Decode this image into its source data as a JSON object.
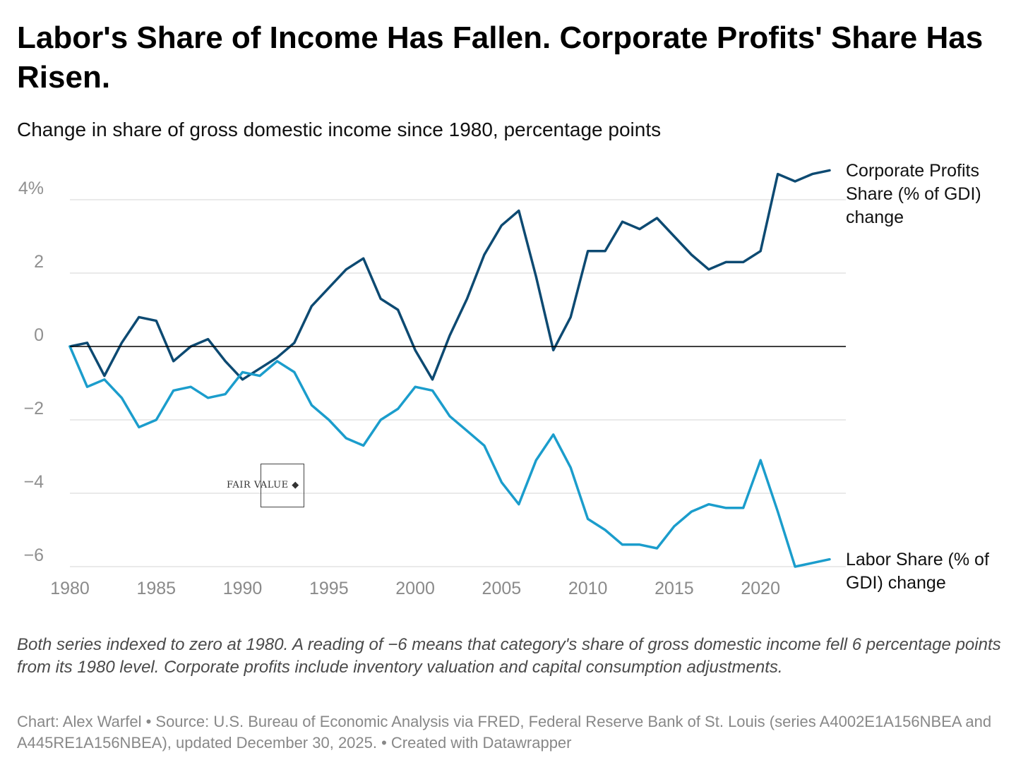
{
  "chart_data": {
    "type": "line",
    "title": "Labor's Share of Income Has Fallen. Corporate Profits' Share Has Risen.",
    "subtitle": "Change in share of gross domestic income since 1980, percentage points",
    "x": [
      1980,
      1981,
      1982,
      1983,
      1984,
      1985,
      1986,
      1987,
      1988,
      1989,
      1990,
      1991,
      1992,
      1993,
      1994,
      1995,
      1996,
      1997,
      1998,
      1999,
      2000,
      2001,
      2002,
      2003,
      2004,
      2005,
      2006,
      2007,
      2008,
      2009,
      2010,
      2011,
      2012,
      2013,
      2014,
      2015,
      2016,
      2017,
      2018,
      2019,
      2020,
      2021,
      2022,
      2023,
      2024
    ],
    "series": [
      {
        "name": "Corporate Profits Share (% of GDI) change",
        "color": "#0d4a72",
        "values": [
          0,
          0.1,
          -0.8,
          0.1,
          0.8,
          0.7,
          -0.4,
          0,
          0.2,
          -0.4,
          -0.9,
          -0.6,
          -0.3,
          0.1,
          1.1,
          1.6,
          2.1,
          2.4,
          1.3,
          1.0,
          -0.1,
          -0.9,
          0.3,
          1.3,
          2.5,
          3.3,
          3.7,
          1.9,
          -0.1,
          0.8,
          2.6,
          2.6,
          3.4,
          3.2,
          3.5,
          3.0,
          2.5,
          2.1,
          2.3,
          2.3,
          2.6,
          4.7,
          4.5,
          4.7,
          4.8
        ]
      },
      {
        "name": "Labor Share (% of GDI) change",
        "color": "#1b9dcc",
        "values": [
          0,
          -1.1,
          -0.9,
          -1.4,
          -2.2,
          -2.0,
          -1.2,
          -1.1,
          -1.4,
          -1.3,
          -0.7,
          -0.8,
          -0.4,
          -0.7,
          -1.6,
          -2.0,
          -2.5,
          -2.7,
          -2.0,
          -1.7,
          -1.1,
          -1.2,
          -1.9,
          -2.3,
          -2.7,
          -3.7,
          -4.3,
          -3.1,
          -2.4,
          -3.3,
          -4.7,
          -5.0,
          -5.4,
          -5.4,
          -5.5,
          -4.9,
          -4.5,
          -4.3,
          -4.4,
          -4.4,
          -3.1,
          -4.5,
          -6.0,
          -5.9,
          -5.8
        ]
      }
    ],
    "ylim": [
      -6,
      4.6
    ],
    "yticks": [
      4,
      2,
      0,
      -2,
      -4,
      -6
    ],
    "ytick_labels": [
      "4%",
      "2",
      "0",
      "−2",
      "−4",
      "−6"
    ],
    "xticks": [
      1980,
      1985,
      1990,
      1995,
      2000,
      2005,
      2010,
      2015,
      2020
    ],
    "xtick_labels": [
      "1980",
      "1985",
      "1990",
      "1995",
      "2000",
      "2005",
      "2010",
      "2015",
      "2020"
    ],
    "xlabel": "",
    "ylabel": "",
    "grid": true,
    "legend": "direct labels at line ends (right)",
    "colors": {
      "grid": "#e3e3e3",
      "zero_line": "#000000",
      "tick_text": "#909090"
    }
  },
  "series_labels": {
    "profits": "Corporate Profits Share (% of GDI) change",
    "labor": "Labor Share (% of GDI) change"
  },
  "notes": "Both series indexed to zero at 1980. A reading of −6 means that category's share of gross domestic income fell 6 percentage points from its 1980 level. Corporate profits include inventory valuation and capital consumption adjustments.",
  "credit": "Chart: Alex Warfel • Source: U.S. Bureau of Economic Analysis via FRED, Federal Reserve Bank of St. Louis (series A4002E1A156NBEA and A445RE1A156NBEA), updated December 30, 2025. • Created with Datawrapper",
  "watermark": {
    "text": "FAIR VALUE"
  }
}
